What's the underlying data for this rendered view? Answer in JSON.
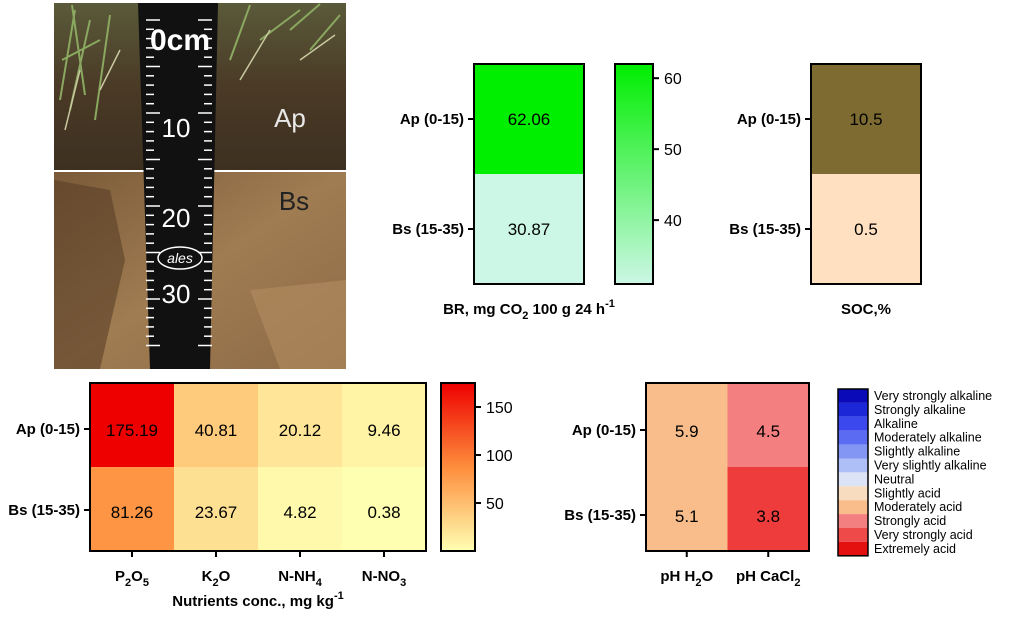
{
  "photo": {
    "horizon_top": "Ap",
    "horizon_bottom": "Bs",
    "ruler_unit": "0cm",
    "ruler_marks": [
      "10",
      "20",
      "30"
    ],
    "logo_text": "ales"
  },
  "chart_data": [
    {
      "type": "heatmap",
      "id": "br",
      "rows": [
        "Ap (0-15)",
        "Bs (15-35)"
      ],
      "columns": [
        ""
      ],
      "values": [
        [
          62.06
        ],
        [
          30.87
        ]
      ],
      "value_labels": [
        [
          "62.06"
        ],
        [
          "30.87"
        ]
      ],
      "xlabel_main": "BR, mg CO",
      "xlabel_sub": "2",
      "xlabel_rest": " 100 g 24 h",
      "xlabel_sup": "-1",
      "colorbar": {
        "ticks": [
          40,
          50,
          60
        ],
        "tick_labels": [
          "40",
          "50",
          "60"
        ],
        "range": [
          31,
          62
        ],
        "colors": [
          "#ccf7e6",
          "#00ee00"
        ]
      }
    },
    {
      "type": "heatmap",
      "id": "soc",
      "rows": [
        "Ap (0-15)",
        "Bs (15-35)"
      ],
      "columns": [
        ""
      ],
      "values": [
        [
          10.5
        ],
        [
          0.5
        ]
      ],
      "value_labels": [
        [
          "10.5"
        ],
        [
          "0.5"
        ]
      ],
      "xlabel": "SOC,%",
      "colors": [
        "#ffe0c0",
        "#7d6b32"
      ]
    },
    {
      "type": "heatmap",
      "id": "nutrients",
      "rows": [
        "Ap (0-15)",
        "Bs (15-35)"
      ],
      "columns": [
        {
          "main": "P",
          "sub1": "2",
          "mid": "O",
          "sub2": "5"
        },
        {
          "main": "K",
          "sub1": "2",
          "mid": "O",
          "sub2": ""
        },
        {
          "main": "N-NH",
          "sub1": "4",
          "mid": "",
          "sub2": ""
        },
        {
          "main": "N-NO",
          "sub1": "3",
          "mid": "",
          "sub2": ""
        }
      ],
      "values": [
        [
          175.19,
          40.81,
          20.12,
          9.46
        ],
        [
          81.26,
          23.67,
          4.82,
          0.38
        ]
      ],
      "value_labels": [
        [
          "175.19",
          "40.81",
          "20.12",
          "9.46"
        ],
        [
          "81.26",
          "23.67",
          "4.82",
          "0.38"
        ]
      ],
      "xlabel_main": "Nutrients conc., mg kg",
      "xlabel_sup": "-1",
      "colorbar": {
        "ticks": [
          50,
          100,
          150
        ],
        "tick_labels": [
          "50",
          "100",
          "150"
        ],
        "range": [
          0,
          175
        ],
        "colors": [
          "#ffffb2",
          "#fd8d3c",
          "#ee0000"
        ]
      }
    },
    {
      "type": "heatmap",
      "id": "ph",
      "rows": [
        "Ap (0-15)",
        "Bs (15-35)"
      ],
      "columns": [
        {
          "main": "pH H",
          "sub1": "2",
          "mid": "O",
          "sub2": ""
        },
        {
          "main": "pH CaCl",
          "sub1": "2",
          "mid": "",
          "sub2": ""
        }
      ],
      "values": [
        [
          5.9,
          4.5
        ],
        [
          5.1,
          3.8
        ]
      ],
      "value_labels": [
        [
          "5.9",
          "4.5"
        ],
        [
          "5.1",
          "3.8"
        ]
      ],
      "cell_colors": [
        [
          "#f8bd8a",
          "#f47f80"
        ],
        [
          "#f8bd8a",
          "#ee3c3c"
        ]
      ],
      "legend": [
        {
          "label": "Very strongly alkaline",
          "color": "#0a0ab8"
        },
        {
          "label": "Strongly alkaline",
          "color": "#1c28d8"
        },
        {
          "label": "Alkaline",
          "color": "#3b48ee"
        },
        {
          "label": "Moderately alkaline",
          "color": "#5b6cf2"
        },
        {
          "label": "Slightly alkaline",
          "color": "#8496f4"
        },
        {
          "label": "Very slightly alkaline",
          "color": "#aebef6"
        },
        {
          "label": "Neutral",
          "color": "#dde3f6"
        },
        {
          "label": "Slightly acid",
          "color": "#f8dcc0"
        },
        {
          "label": "Moderately acid",
          "color": "#f8bd8a"
        },
        {
          "label": "Strongly acid",
          "color": "#f47f80"
        },
        {
          "label": "Very strongly acid",
          "color": "#ee4a4a"
        },
        {
          "label": "Extremely acid",
          "color": "#e40f0f"
        }
      ]
    }
  ]
}
